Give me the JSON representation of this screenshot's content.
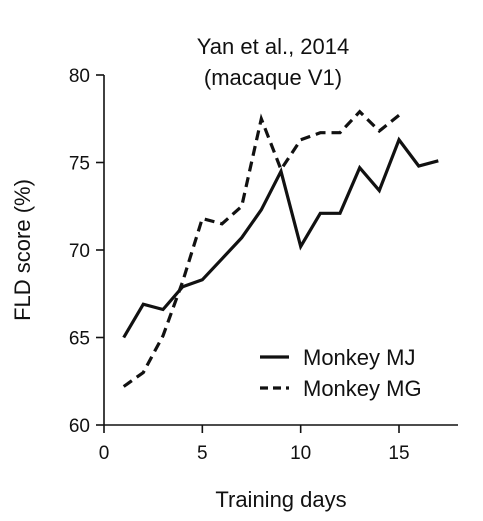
{
  "chart_data": {
    "type": "line",
    "title": [
      "Yan et al., 2014",
      "(macaque V1)"
    ],
    "xlabel": "Training days",
    "ylabel": "FLD score (%)",
    "xlim": [
      0,
      18
    ],
    "ylim": [
      60,
      80
    ],
    "xticks": [
      0,
      5,
      10,
      15
    ],
    "yticks": [
      60,
      65,
      70,
      75,
      80
    ],
    "legend_position": "bottom-right",
    "series": [
      {
        "name": "Monkey MJ",
        "style": "solid",
        "color": "#111111",
        "x": [
          1,
          2,
          3,
          4,
          5,
          6,
          7,
          8,
          9,
          10,
          11,
          12,
          13,
          14,
          15,
          16,
          17
        ],
        "y": [
          65.0,
          66.9,
          66.6,
          67.9,
          68.3,
          69.5,
          70.7,
          72.3,
          74.5,
          70.2,
          72.1,
          72.1,
          74.7,
          73.4,
          76.3,
          74.8,
          75.1
        ]
      },
      {
        "name": "Monkey MG",
        "style": "dashed",
        "color": "#111111",
        "x": [
          1,
          2,
          3,
          4,
          5,
          6,
          7,
          8,
          9,
          10,
          11,
          12,
          13,
          14,
          15
        ],
        "y": [
          62.2,
          63.0,
          65.1,
          68.2,
          71.8,
          71.5,
          72.5,
          77.5,
          74.6,
          76.3,
          76.7,
          76.7,
          77.9,
          76.8,
          77.7
        ]
      }
    ]
  }
}
